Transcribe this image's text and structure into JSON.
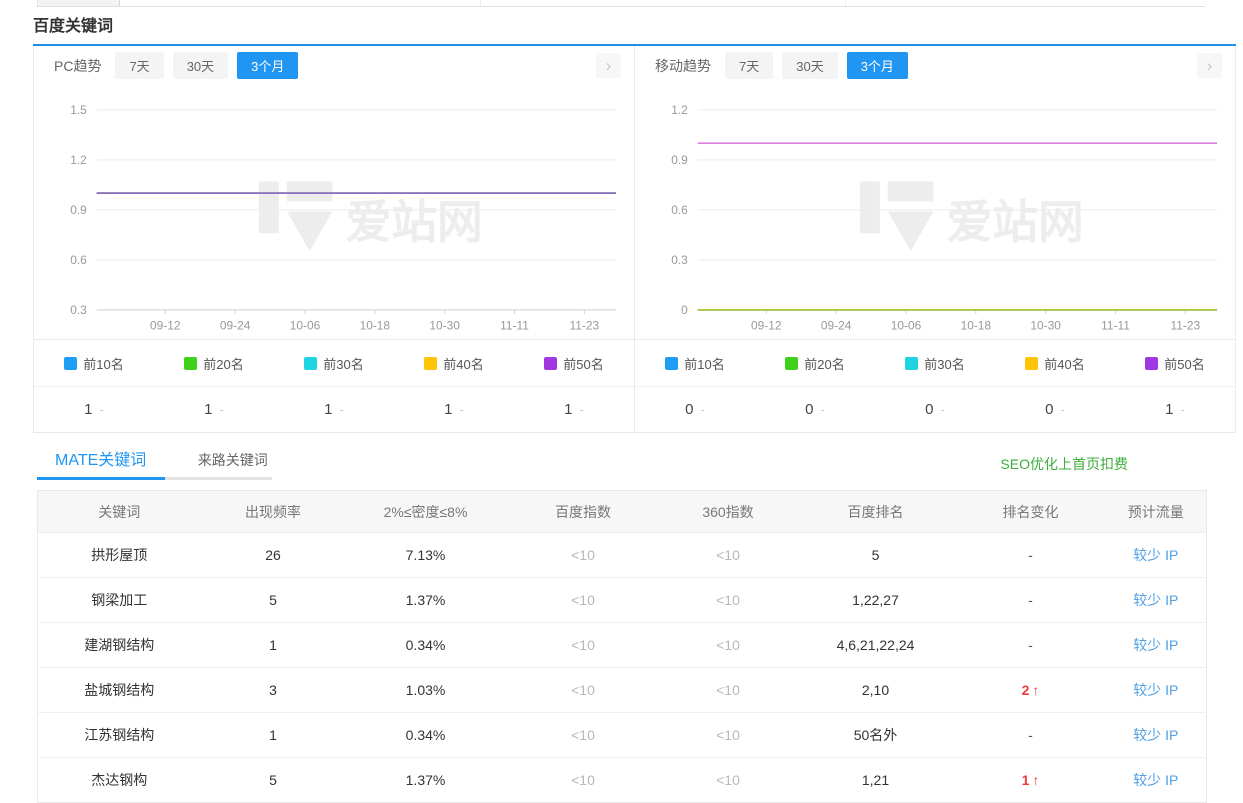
{
  "title": "百度关键词",
  "watermark": "爱站网",
  "icons": {
    "chevron_right": "›",
    "rank_up_arrow": "↑"
  },
  "colors": {
    "accent_blue": "#2095F2",
    "link_blue": "#4D9FE6",
    "link_green": "#3CAF3C",
    "up_red": "#F03B3B",
    "muted_gray": "#B8B8B8"
  },
  "panels": [
    {
      "id": "pc-trend",
      "label": "PC趋势",
      "range_tabs": [
        {
          "id": "7d",
          "label": "7天",
          "active": false
        },
        {
          "id": "30d",
          "label": "30天",
          "active": false
        },
        {
          "id": "3m",
          "label": "3个月",
          "active": true
        }
      ],
      "legend": [
        {
          "label": "前10名",
          "color": "#1E9DF5",
          "value": "1",
          "suffix": "-"
        },
        {
          "label": "前20名",
          "color": "#3FD119",
          "value": "1",
          "suffix": "-"
        },
        {
          "label": "前30名",
          "color": "#1ED4E0",
          "value": "1",
          "suffix": "-"
        },
        {
          "label": "前40名",
          "color": "#FFC408",
          "value": "1",
          "suffix": "-"
        },
        {
          "label": "前50名",
          "color": "#A136E3",
          "value": "1",
          "suffix": "-"
        }
      ]
    },
    {
      "id": "mobile-trend",
      "label": "移动趋势",
      "range_tabs": [
        {
          "id": "7d",
          "label": "7天",
          "active": false
        },
        {
          "id": "30d",
          "label": "30天",
          "active": false
        },
        {
          "id": "3m",
          "label": "3个月",
          "active": true
        }
      ],
      "legend": [
        {
          "label": "前10名",
          "color": "#1E9DF5",
          "value": "0",
          "suffix": "-"
        },
        {
          "label": "前20名",
          "color": "#3FD119",
          "value": "0",
          "suffix": "-"
        },
        {
          "label": "前30名",
          "color": "#1ED4E0",
          "value": "0",
          "suffix": "-"
        },
        {
          "label": "前40名",
          "color": "#FFC408",
          "value": "0",
          "suffix": "-"
        },
        {
          "label": "前50名",
          "color": "#A136E3",
          "value": "1",
          "suffix": "-"
        }
      ]
    }
  ],
  "chart_data": [
    {
      "type": "line",
      "title": "PC趋势 3个月",
      "x_labels": [
        "09-12",
        "09-24",
        "10-06",
        "10-18",
        "10-30",
        "11-11",
        "11-23"
      ],
      "ylim": [
        0.3,
        1.5
      ],
      "yticks": [
        0.3,
        0.6,
        0.9,
        1.2,
        1.5
      ],
      "grid": true,
      "legend_position": "bottom",
      "series": [
        {
          "name": "前10名",
          "value": 1,
          "line_color": "#1E9DF5"
        },
        {
          "name": "前20名",
          "value": 1,
          "line_color": "#3FD119"
        },
        {
          "name": "前30名",
          "value": 1,
          "line_color": "#1ED4E0"
        },
        {
          "name": "前40名",
          "value": 1,
          "line_color": "#FFC408"
        },
        {
          "name": "前50名",
          "value": 1,
          "line_color": "#8F68C9"
        }
      ]
    },
    {
      "type": "line",
      "title": "移动趋势 3个月",
      "x_labels": [
        "09-12",
        "09-24",
        "10-06",
        "10-18",
        "10-30",
        "11-11",
        "11-23"
      ],
      "ylim": [
        0,
        1.2
      ],
      "yticks": [
        0,
        0.3,
        0.6,
        0.9,
        1.2
      ],
      "grid": true,
      "legend_position": "bottom",
      "series": [
        {
          "name": "前10名",
          "value": 0,
          "line_color": "#1E9DF5"
        },
        {
          "name": "前20名",
          "value": 0,
          "line_color": "#3FD119"
        },
        {
          "name": "前30名",
          "value": 0,
          "line_color": "#1ED4E0"
        },
        {
          "name": "前40名",
          "value": 0,
          "line_color": "#B9C532"
        },
        {
          "name": "前50名",
          "value": 1,
          "line_color": "#DC7EE0"
        }
      ]
    }
  ],
  "keyword_tabs": [
    {
      "id": "mate",
      "label": "MATE关键词",
      "active": true
    },
    {
      "id": "refer",
      "label": "来路关键词",
      "active": false
    }
  ],
  "seo_link": "SEO优化上首页扣费",
  "table": {
    "columns": [
      "关键词",
      "出现频率",
      "2%≤密度≤8%",
      "百度指数",
      "360指数",
      "百度排名",
      "排名变化",
      "预计流量"
    ],
    "rows": [
      {
        "keyword": "拱形屋顶",
        "frequency": "26",
        "density": "7.13%",
        "baidu_index": "<10",
        "so_index": "<10",
        "baidu_rank": "5",
        "rank_change": "-",
        "rank_change_up": false,
        "traffic": "较少 IP"
      },
      {
        "keyword": "钢梁加工",
        "frequency": "5",
        "density": "1.37%",
        "baidu_index": "<10",
        "so_index": "<10",
        "baidu_rank": "1,22,27",
        "rank_change": "-",
        "rank_change_up": false,
        "traffic": "较少 IP"
      },
      {
        "keyword": "建湖钢结构",
        "frequency": "1",
        "density": "0.34%",
        "baidu_index": "<10",
        "so_index": "<10",
        "baidu_rank": "4,6,21,22,24",
        "rank_change": "-",
        "rank_change_up": false,
        "traffic": "较少 IP"
      },
      {
        "keyword": "盐城钢结构",
        "frequency": "3",
        "density": "1.03%",
        "baidu_index": "<10",
        "so_index": "<10",
        "baidu_rank": "2,10",
        "rank_change": "2",
        "rank_change_up": true,
        "traffic": "较少 IP"
      },
      {
        "keyword": "江苏钢结构",
        "frequency": "1",
        "density": "0.34%",
        "baidu_index": "<10",
        "so_index": "<10",
        "baidu_rank": "50名外",
        "rank_change": "-",
        "rank_change_up": false,
        "traffic": "较少 IP"
      },
      {
        "keyword": "杰达钢构",
        "frequency": "5",
        "density": "1.37%",
        "baidu_index": "<10",
        "so_index": "<10",
        "baidu_rank": "1,21",
        "rank_change": "1",
        "rank_change_up": true,
        "traffic": "较少 IP"
      }
    ]
  }
}
